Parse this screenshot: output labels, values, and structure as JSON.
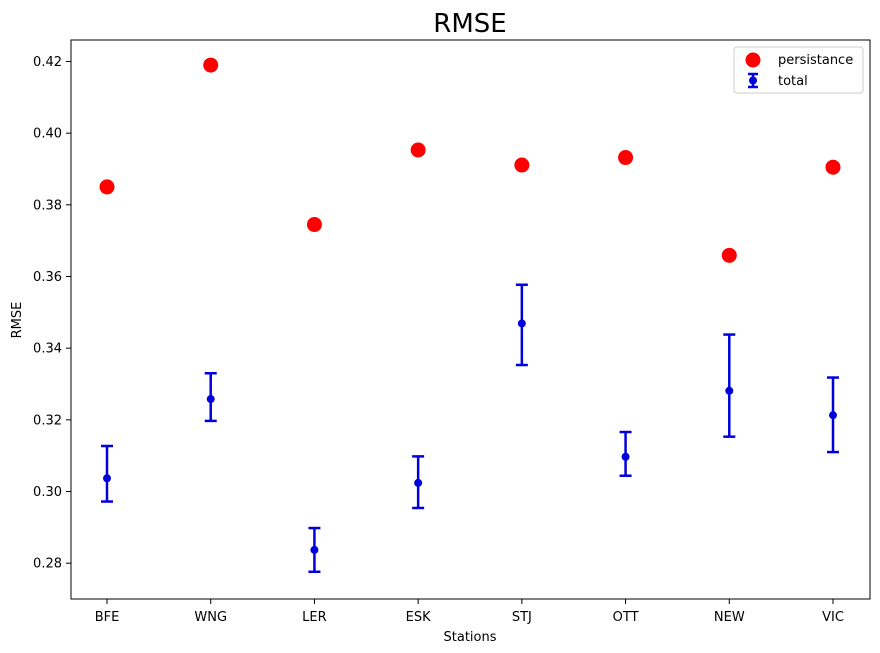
{
  "chart_data": {
    "type": "scatter",
    "title": "RMSE",
    "xlabel": "Stations",
    "ylabel": "RMSE",
    "categories": [
      "BFE",
      "WNG",
      "LER",
      "ESK",
      "STJ",
      "OTT",
      "NEW",
      "VIC"
    ],
    "ylim": [
      0.27,
      0.426
    ],
    "yticks": [
      "0.28",
      "0.30",
      "0.32",
      "0.34",
      "0.36",
      "0.38",
      "0.40",
      "0.42"
    ],
    "grid": false,
    "legend_position": "top-right",
    "series": [
      {
        "name": "persistance",
        "kind": "scatter",
        "color": "#ff0000",
        "values": [
          0.385,
          0.419,
          0.3745,
          0.3953,
          0.3911,
          0.3932,
          0.3659,
          0.3905
        ]
      },
      {
        "name": "total",
        "kind": "errorbar",
        "color": "#0000dd",
        "values": [
          0.3037,
          0.3258,
          0.2837,
          0.3024,
          0.3469,
          0.3097,
          0.3281,
          0.3213
        ],
        "lower": [
          0.2972,
          0.3197,
          0.2776,
          0.2954,
          0.3353,
          0.3044,
          0.3153,
          0.311
        ],
        "upper": [
          0.3127,
          0.333,
          0.2898,
          0.3098,
          0.3577,
          0.3166,
          0.3438,
          0.3318
        ]
      }
    ]
  }
}
